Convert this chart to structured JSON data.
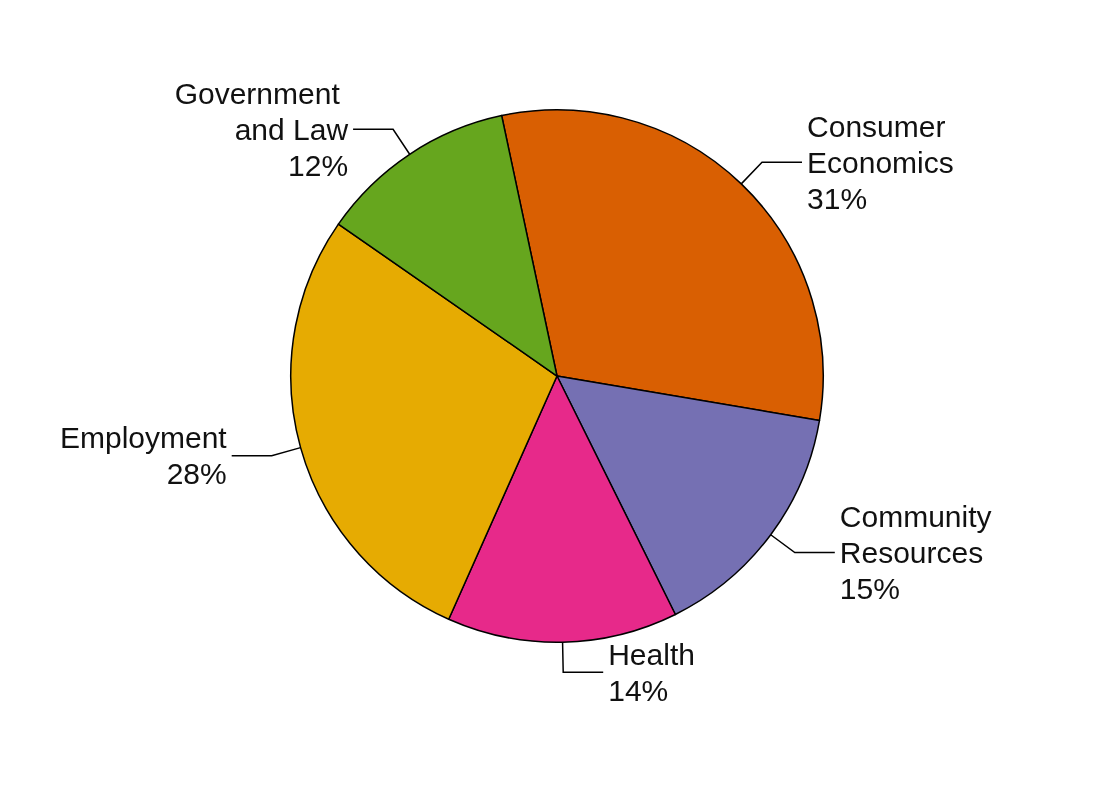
{
  "chart_data": {
    "type": "pie",
    "categories": [
      "Consumer Economics",
      "Community Resources",
      "Health",
      "Employment",
      "Government and Law"
    ],
    "values": [
      31,
      15,
      14,
      28,
      12
    ],
    "value_labels": [
      "31%",
      "15%",
      "14%",
      "28%",
      "12%"
    ],
    "colors": [
      "#d95f02",
      "#7570b3",
      "#e7298a",
      "#e6ab02",
      "#66a61e"
    ]
  }
}
